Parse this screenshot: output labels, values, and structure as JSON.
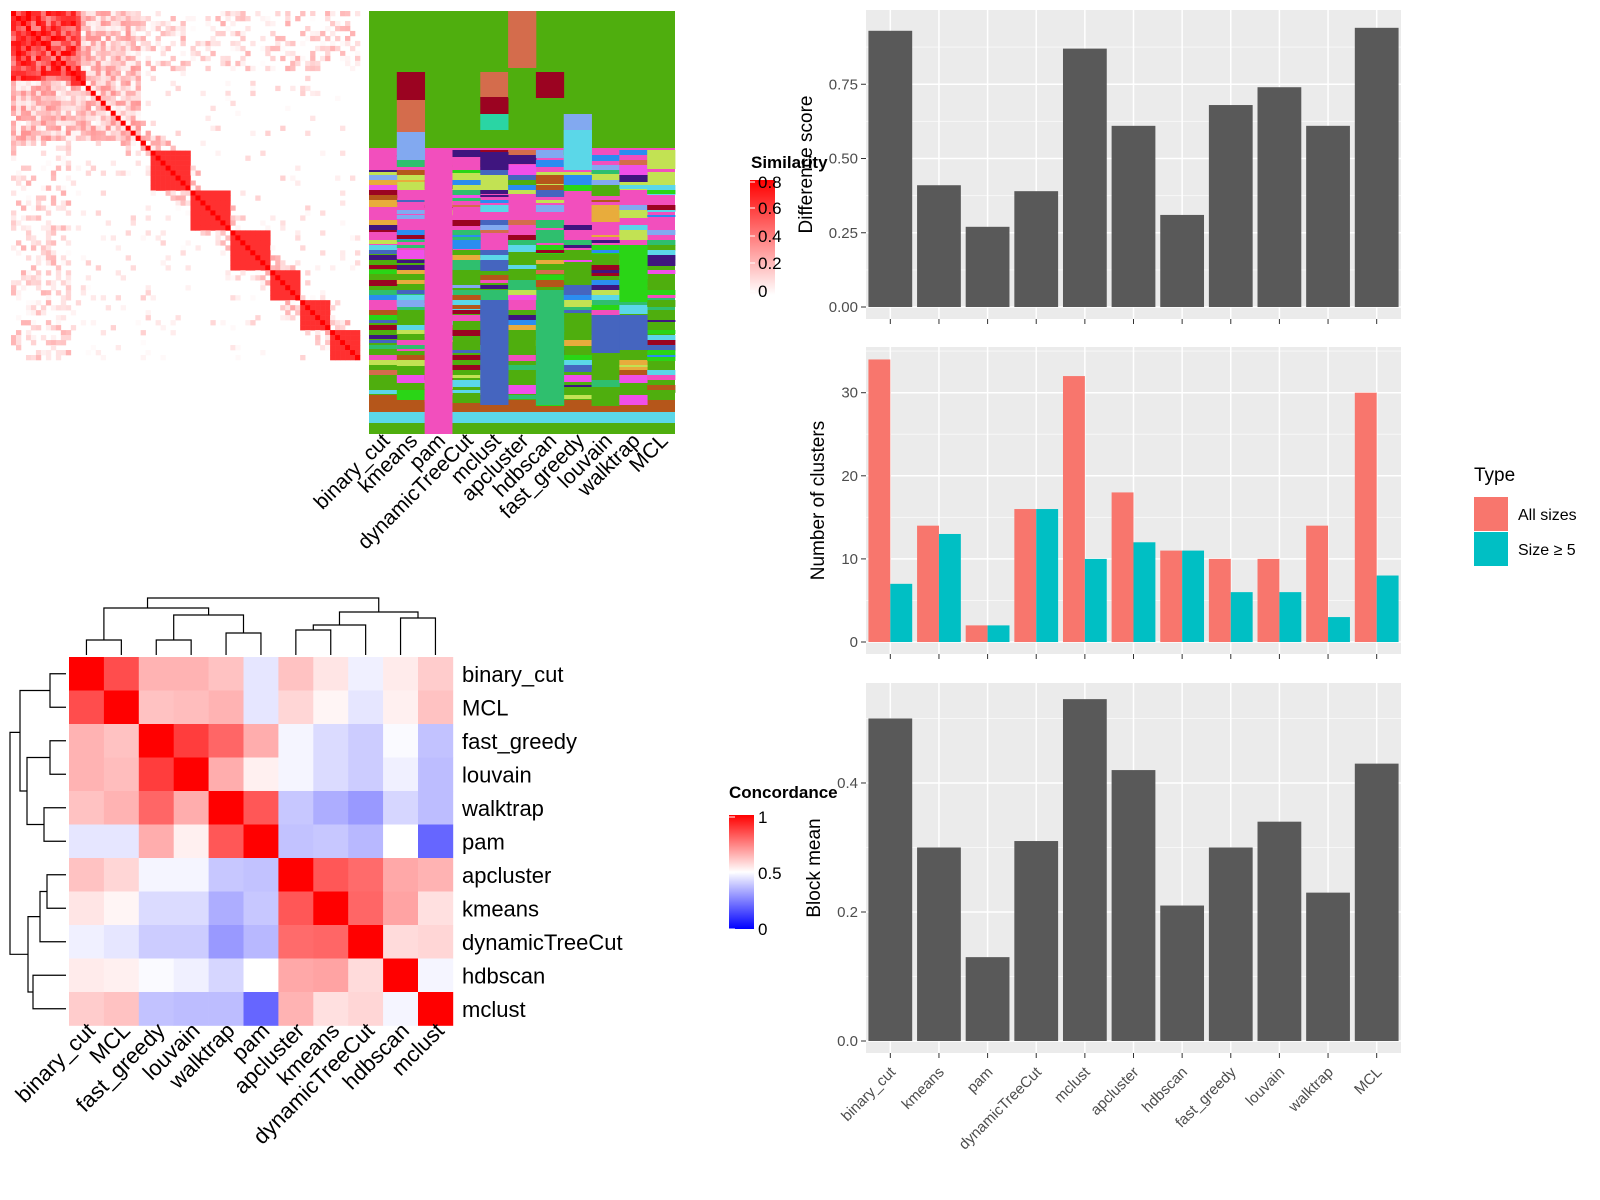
{
  "palette": {
    "similarity_high": "#ff0000",
    "concordance_high": "#ff0000",
    "concordance_mid": "#ffffff",
    "concordance_low": "#0000ff",
    "bar_dark": "#595959",
    "panel_bg": "#ebebeb",
    "all_sizes": "#f8766d",
    "size_ge5": "#00bfc4"
  },
  "chart_data": [
    {
      "type": "heatmap",
      "panel": "similarity-matrix",
      "legend_title": "Similarity",
      "legend_ticks": [
        "0.8",
        "0.6",
        "0.4",
        "0.2",
        "0"
      ]
    },
    {
      "type": "heatmap",
      "panel": "cluster-assignment",
      "columns": [
        "binary_cut",
        "kmeans",
        "pam",
        "dynamicTreeCut",
        "mclust",
        "apcluster",
        "hdbscan",
        "fast_greedy",
        "louvain",
        "walktrap",
        "MCL"
      ]
    },
    {
      "type": "heatmap",
      "panel": "concordance",
      "legend_title": "Concordance",
      "legend_ticks": [
        "1",
        "0.5",
        "0"
      ],
      "rows": [
        "binary_cut",
        "MCL",
        "fast_greedy",
        "louvain",
        "walktrap",
        "pam",
        "apcluster",
        "kmeans",
        "dynamicTreeCut",
        "hdbscan",
        "mclust"
      ],
      "values": [
        [
          1.0,
          0.85,
          0.65,
          0.65,
          0.62,
          0.45,
          0.62,
          0.55,
          0.47,
          0.54,
          0.6
        ],
        [
          0.85,
          1.0,
          0.62,
          0.63,
          0.65,
          0.45,
          0.58,
          0.52,
          0.45,
          0.53,
          0.62
        ],
        [
          0.65,
          0.62,
          1.0,
          0.88,
          0.8,
          0.66,
          0.48,
          0.43,
          0.4,
          0.49,
          0.38
        ],
        [
          0.65,
          0.63,
          0.88,
          1.0,
          0.66,
          0.53,
          0.48,
          0.43,
          0.4,
          0.47,
          0.37
        ],
        [
          0.62,
          0.65,
          0.8,
          0.66,
          1.0,
          0.83,
          0.39,
          0.34,
          0.3,
          0.42,
          0.37
        ],
        [
          0.45,
          0.45,
          0.66,
          0.53,
          0.83,
          1.0,
          0.38,
          0.39,
          0.36,
          0.5,
          0.2
        ],
        [
          0.62,
          0.58,
          0.48,
          0.48,
          0.39,
          0.38,
          1.0,
          0.83,
          0.79,
          0.67,
          0.65
        ],
        [
          0.55,
          0.52,
          0.43,
          0.43,
          0.34,
          0.39,
          0.83,
          1.0,
          0.8,
          0.68,
          0.56
        ],
        [
          0.47,
          0.45,
          0.4,
          0.4,
          0.3,
          0.36,
          0.79,
          0.8,
          1.0,
          0.57,
          0.58
        ],
        [
          0.54,
          0.53,
          0.49,
          0.47,
          0.42,
          0.5,
          0.67,
          0.68,
          0.57,
          1.0,
          0.48
        ],
        [
          0.6,
          0.62,
          0.38,
          0.37,
          0.37,
          0.2,
          0.65,
          0.56,
          0.58,
          0.48,
          1.0
        ]
      ]
    },
    {
      "type": "bar",
      "panel": "difference-score",
      "categories": [
        "binary_cut",
        "kmeans",
        "pam",
        "dynamicTreeCut",
        "mclust",
        "apcluster",
        "hdbscan",
        "fast_greedy",
        "louvain",
        "walktrap",
        "MCL"
      ],
      "values": [
        0.93,
        0.41,
        0.27,
        0.39,
        0.87,
        0.61,
        0.31,
        0.68,
        0.74,
        0.61,
        0.94
      ],
      "ylabel": "Difference score",
      "ylim": [
        0,
        1.0
      ],
      "yticks": [
        "0.00",
        "0.25",
        "0.50",
        "0.75"
      ]
    },
    {
      "type": "bar",
      "panel": "number-of-clusters",
      "categories": [
        "binary_cut",
        "kmeans",
        "pam",
        "dynamicTreeCut",
        "mclust",
        "apcluster",
        "hdbscan",
        "fast_greedy",
        "louvain",
        "walktrap",
        "MCL"
      ],
      "series": [
        {
          "name": "All sizes",
          "values": [
            34,
            14,
            2,
            16,
            32,
            18,
            11,
            10,
            10,
            14,
            30
          ]
        },
        {
          "name": "Size ≥ 5",
          "values": [
            7,
            13,
            2,
            16,
            10,
            12,
            11,
            6,
            6,
            3,
            8
          ]
        }
      ],
      "ylabel": "Number of clusters",
      "ylim": [
        0,
        35.5
      ],
      "yticks": [
        "0",
        "10",
        "20",
        "30"
      ],
      "legend_title": "Type",
      "legend_position": "right"
    },
    {
      "type": "bar",
      "panel": "block-mean",
      "categories": [
        "binary_cut",
        "kmeans",
        "pam",
        "dynamicTreeCut",
        "mclust",
        "apcluster",
        "hdbscan",
        "fast_greedy",
        "louvain",
        "walktrap",
        "MCL"
      ],
      "values": [
        0.5,
        0.3,
        0.13,
        0.31,
        0.53,
        0.42,
        0.21,
        0.3,
        0.34,
        0.23,
        0.43
      ],
      "ylabel": "Block mean",
      "ylim": [
        0,
        0.555
      ],
      "yticks": [
        "0.0",
        "0.2",
        "0.4"
      ]
    }
  ]
}
